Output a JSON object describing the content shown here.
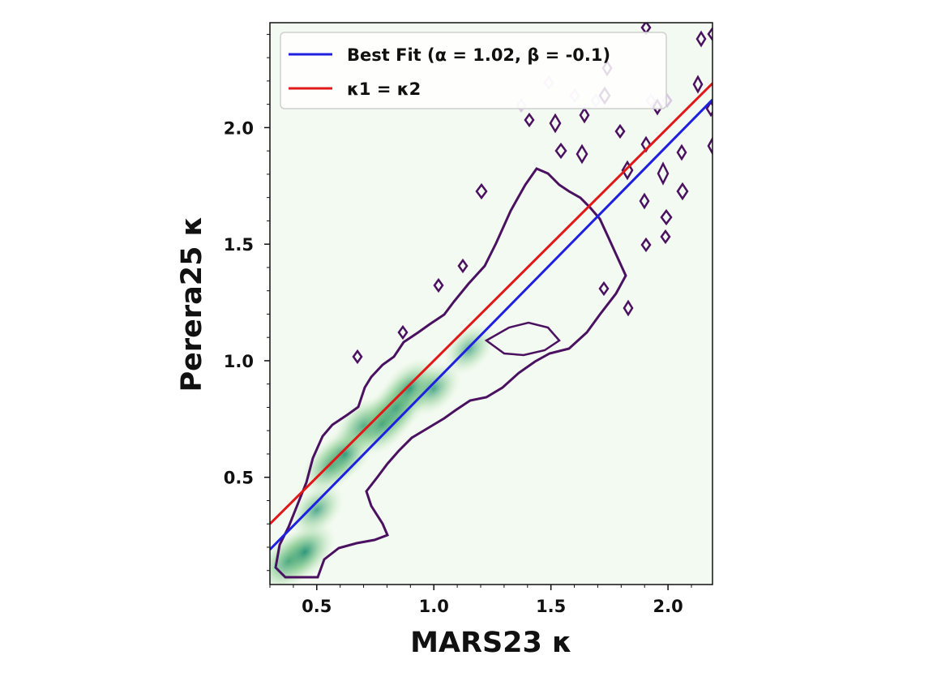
{
  "chart_data": {
    "type": "scatter",
    "subtype": "2d-histogram-with-contours",
    "xlabel": "MARS23 κ",
    "ylabel": "Perera25 κ",
    "xlim": [
      0.3,
      2.19
    ],
    "ylim": [
      0.04,
      2.45
    ],
    "xticks": [
      "0.5",
      "1.0",
      "1.5",
      "2.0"
    ],
    "xtick_values": [
      0.5,
      1.0,
      1.5,
      2.0
    ],
    "yticks": [
      "0.5",
      "1.0",
      "1.5",
      "2.0"
    ],
    "ytick_values": [
      0.5,
      1.0,
      1.5,
      2.0
    ],
    "grid": false,
    "legend_position": "top-right",
    "series": [
      {
        "name": "Best Fit (α = 1.02, β = -0.1)",
        "kind": "line",
        "color": "#1f1fe0",
        "x": [
          0.3,
          2.19
        ],
        "y": [
          0.19,
          2.12
        ]
      },
      {
        "name": "κ1 = κ2",
        "kind": "line",
        "color": "#e01818",
        "x": [
          0.3,
          2.19
        ],
        "y": [
          0.3,
          2.19
        ]
      }
    ],
    "density_cores": [
      {
        "x": 0.38,
        "y": 0.14,
        "level": 0.9
      },
      {
        "x": 0.45,
        "y": 0.18,
        "level": 0.9
      },
      {
        "x": 0.5,
        "y": 0.36,
        "level": 0.6
      },
      {
        "x": 0.56,
        "y": 0.55,
        "level": 0.8
      },
      {
        "x": 0.62,
        "y": 0.6,
        "level": 0.8
      },
      {
        "x": 0.7,
        "y": 0.72,
        "level": 0.8
      },
      {
        "x": 0.78,
        "y": 0.73,
        "level": 1.0
      },
      {
        "x": 0.84,
        "y": 0.8,
        "level": 1.0
      },
      {
        "x": 0.9,
        "y": 0.88,
        "level": 0.9
      },
      {
        "x": 1.0,
        "y": 0.88,
        "level": 0.6
      },
      {
        "x": 1.15,
        "y": 1.05,
        "level": 0.5
      }
    ],
    "contour_color": "#4a1160",
    "histogram_colormap": "greens",
    "background_color": "#f3faf1"
  }
}
